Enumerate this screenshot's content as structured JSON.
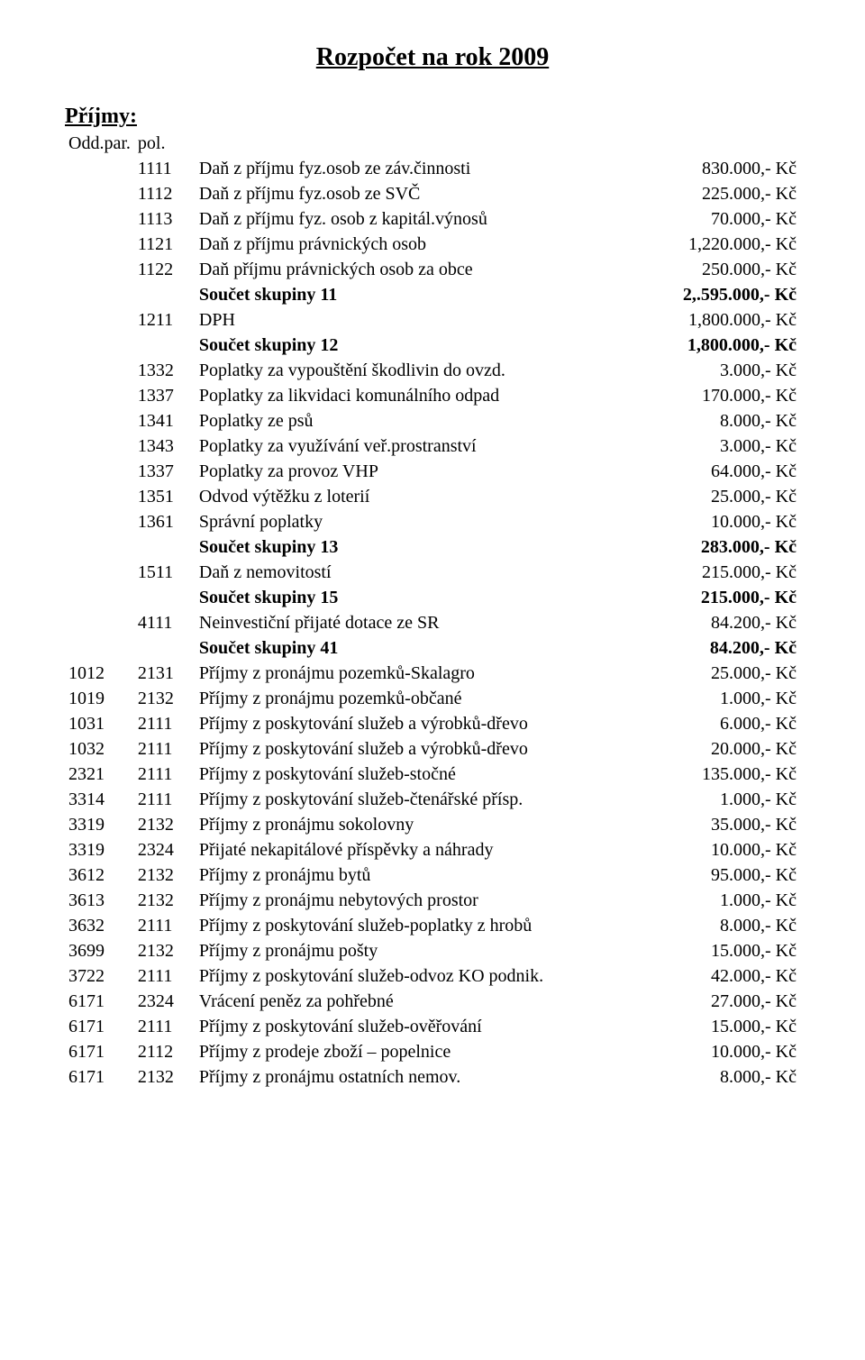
{
  "title": "Rozpočet na rok 2009",
  "section_heading": "Příjmy:",
  "subheading_prefix": "Odd.par.",
  "subheading_code": "pol.",
  "rows": [
    {
      "prefix": "",
      "code": "1111",
      "desc": "Daň z příjmu fyz.osob ze záv.činnosti",
      "amount": "830.000,- Kč",
      "bold": false
    },
    {
      "prefix": "",
      "code": "1112",
      "desc": "Daň z příjmu fyz.osob ze SVČ",
      "amount": "225.000,- Kč",
      "bold": false
    },
    {
      "prefix": "",
      "code": "1113",
      "desc": "Daň z příjmu fyz. osob z kapitál.výnosů",
      "amount": "70.000,- Kč",
      "bold": false
    },
    {
      "prefix": "",
      "code": "1121",
      "desc": "Daň z příjmu právnických osob",
      "amount": "1,220.000,- Kč",
      "bold": false
    },
    {
      "prefix": "",
      "code": "1122",
      "desc": "Daň příjmu právnických osob za obce",
      "amount": "250.000,- Kč",
      "bold": false
    },
    {
      "prefix": "",
      "code": "",
      "desc": "Součet skupiny 11",
      "amount": "2,.595.000,- Kč",
      "bold": true
    },
    {
      "prefix": "",
      "code": "1211",
      "desc": "DPH",
      "amount": "1,800.000,- Kč",
      "bold": false
    },
    {
      "prefix": "",
      "code": "",
      "desc": "Součet skupiny 12",
      "amount": "1,800.000,- Kč",
      "bold": true
    },
    {
      "prefix": "",
      "code": "1332",
      "desc": "Poplatky za vypouštění škodlivin do ovzd.",
      "amount": "3.000,- Kč",
      "bold": false
    },
    {
      "prefix": "",
      "code": "1337",
      "desc": "Poplatky za likvidaci komunálního odpad",
      "amount": "170.000,- Kč",
      "bold": false
    },
    {
      "prefix": "",
      "code": "1341",
      "desc": "Poplatky ze psů",
      "amount": "8.000,- Kč",
      "bold": false
    },
    {
      "prefix": "",
      "code": "1343",
      "desc": "Poplatky za využívání veř.prostranství",
      "amount": "3.000,- Kč",
      "bold": false
    },
    {
      "prefix": "",
      "code": "1337",
      "desc": "Poplatky za provoz VHP",
      "amount": "64.000,- Kč",
      "bold": false
    },
    {
      "prefix": "",
      "code": "1351",
      "desc": "Odvod výtěžku z loterií",
      "amount": "25.000,- Kč",
      "bold": false
    },
    {
      "prefix": "",
      "code": "1361",
      "desc": "Správní poplatky",
      "amount": "10.000,- Kč",
      "bold": false
    },
    {
      "prefix": "",
      "code": "",
      "desc": "Součet skupiny 13",
      "amount": "283.000,- Kč",
      "bold": true
    },
    {
      "prefix": "",
      "code": "1511",
      "desc": "Daň z nemovitostí",
      "amount": "215.000,- Kč",
      "bold": false
    },
    {
      "prefix": "",
      "code": "",
      "desc": "Součet skupiny 15",
      "amount": "215.000,- Kč",
      "bold": true
    },
    {
      "prefix": "",
      "code": "4111",
      "desc": "Neinvestiční přijaté dotace ze SR",
      "amount": "84.200,- Kč",
      "bold": false
    },
    {
      "prefix": "",
      "code": "",
      "desc": "Součet skupiny 41",
      "amount": "84.200,- Kč",
      "bold": true
    },
    {
      "prefix": "1012",
      "code": "2131",
      "desc": "Příjmy z pronájmu pozemků-Skalagro",
      "amount": "25.000,- Kč",
      "bold": false
    },
    {
      "prefix": "1019",
      "code": "2132",
      "desc": "Příjmy z pronájmu pozemků-občané",
      "amount": "1.000,- Kč",
      "bold": false
    },
    {
      "prefix": "1031",
      "code": "2111",
      "desc": "Příjmy z poskytování služeb a výrobků-dřevo",
      "amount": "6.000,- Kč",
      "bold": false
    },
    {
      "prefix": "1032",
      "code": "2111",
      "desc": "Příjmy z poskytování služeb a výrobků-dřevo",
      "amount": "20.000,- Kč",
      "bold": false
    },
    {
      "prefix": "2321",
      "code": "2111",
      "desc": "Příjmy z poskytování služeb-stočné",
      "amount": "135.000,- Kč",
      "bold": false
    },
    {
      "prefix": "3314",
      "code": "2111",
      "desc": "Příjmy z poskytování služeb-čtenářské přísp.",
      "amount": "1.000,- Kč",
      "bold": false
    },
    {
      "prefix": "3319",
      "code": "2132",
      "desc": "Příjmy z pronájmu sokolovny",
      "amount": "35.000,- Kč",
      "bold": false
    },
    {
      "prefix": "3319",
      "code": "2324",
      "desc": "Přijaté nekapitálové příspěvky a náhrady",
      "amount": "10.000,- Kč",
      "bold": false
    },
    {
      "prefix": "3612",
      "code": "2132",
      "desc": "Příjmy z pronájmu bytů",
      "amount": "95.000,- Kč",
      "bold": false
    },
    {
      "prefix": "3613",
      "code": "2132",
      "desc": "Příjmy z pronájmu nebytových prostor",
      "amount": "1.000,- Kč",
      "bold": false
    },
    {
      "prefix": "3632",
      "code": "2111",
      "desc": "Příjmy z poskytování služeb-poplatky z hrobů",
      "amount": "8.000,- Kč",
      "bold": false
    },
    {
      "prefix": "3699",
      "code": "2132",
      "desc": "Příjmy z pronájmu pošty",
      "amount": "15.000,- Kč",
      "bold": false
    },
    {
      "prefix": "3722",
      "code": "2111",
      "desc": "Příjmy z poskytování služeb-odvoz KO podnik.",
      "amount": "42.000,- Kč",
      "bold": false
    },
    {
      "prefix": "6171",
      "code": "2324",
      "desc": "Vrácení peněz za pohřebné",
      "amount": "27.000,- Kč",
      "bold": false
    },
    {
      "prefix": "6171",
      "code": "2111",
      "desc": "Příjmy z poskytování služeb-ověřování",
      "amount": "15.000,- Kč",
      "bold": false
    },
    {
      "prefix": "6171",
      "code": "2112",
      "desc": "Příjmy z prodeje zboží – popelnice",
      "amount": "10.000,- Kč",
      "bold": false
    },
    {
      "prefix": "6171",
      "code": "2132",
      "desc": "Příjmy z pronájmu ostatních nemov.",
      "amount": "8.000,- Kč",
      "bold": false
    }
  ]
}
